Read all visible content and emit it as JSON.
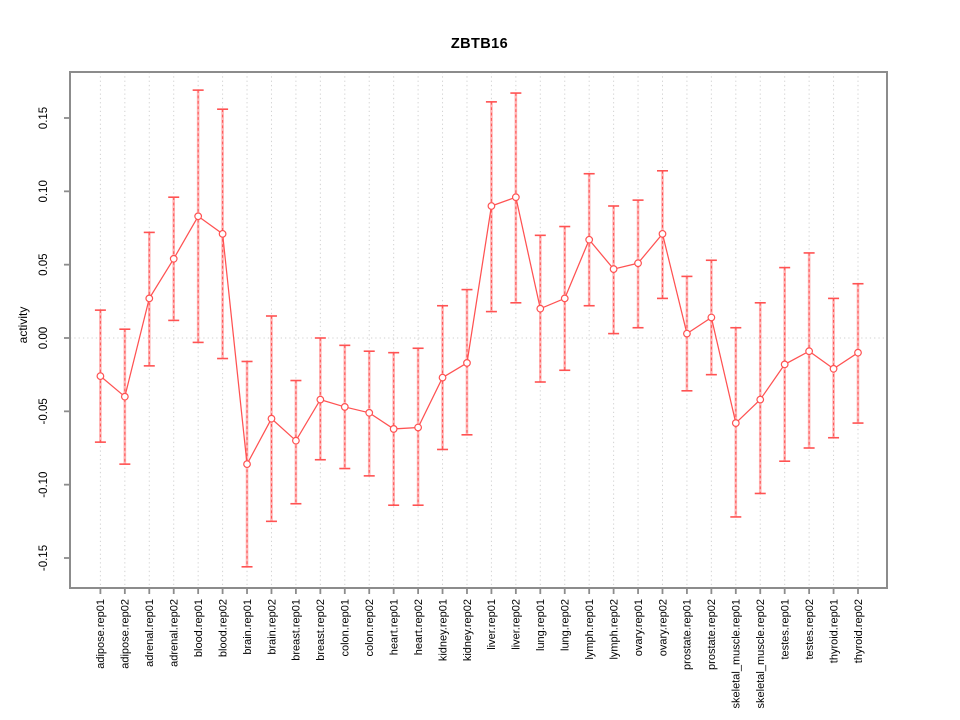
{
  "page": {
    "background": "#ffffff"
  },
  "chart_data": {
    "type": "line",
    "subtype": "points-with-error-bars",
    "title": "ZBTB16",
    "xlabel": "",
    "ylabel": "activity",
    "legend": "none",
    "grid": {
      "vertical": "dotted-per-category",
      "horizontal": "dotted-zero-line-only"
    },
    "ylim": [
      -0.17,
      0.182
    ],
    "ytick_values": [
      0.15,
      0.1,
      0.05,
      0.0,
      -0.05,
      -0.1,
      -0.15
    ],
    "ytick_labels": [
      "0.15",
      "0.10",
      "0.05",
      "0.00",
      "-0.05",
      "-0.10",
      "-0.15"
    ],
    "categories": [
      "adipose.rep01",
      "adipose.rep02",
      "adrenal.rep01",
      "adrenal.rep02",
      "blood.rep01",
      "blood.rep02",
      "brain.rep01",
      "brain.rep02",
      "breast.rep01",
      "breast.rep02",
      "colon.rep01",
      "colon.rep02",
      "heart.rep01",
      "heart.rep02",
      "kidney.rep01",
      "kidney.rep02",
      "liver.rep01",
      "liver.rep02",
      "lung.rep01",
      "lung.rep02",
      "lymph.rep01",
      "lymph.rep02",
      "ovary.rep01",
      "ovary.rep02",
      "prostate.rep01",
      "prostate.rep02",
      "skeletal_muscle.rep01",
      "skeletal_muscle.rep02",
      "testes.rep01",
      "testes.rep02",
      "thyroid.rep01",
      "thyroid.rep02"
    ],
    "series": [
      {
        "name": "ZBTB16 activity",
        "values": [
          -0.026,
          -0.04,
          0.027,
          0.054,
          0.083,
          0.071,
          -0.086,
          -0.055,
          -0.07,
          -0.042,
          -0.047,
          -0.051,
          -0.062,
          -0.061,
          -0.027,
          -0.017,
          0.09,
          0.096,
          0.02,
          0.027,
          0.067,
          0.047,
          0.051,
          0.071,
          0.003,
          0.014,
          -0.058,
          -0.042,
          -0.018,
          -0.009,
          -0.021,
          -0.01
        ],
        "ci_upper": [
          0.019,
          0.006,
          0.072,
          0.096,
          0.169,
          0.156,
          -0.016,
          0.015,
          -0.029,
          0.0,
          -0.005,
          -0.009,
          -0.01,
          -0.007,
          0.022,
          0.033,
          0.161,
          0.167,
          0.07,
          0.076,
          0.112,
          0.09,
          0.094,
          0.114,
          0.042,
          0.053,
          0.007,
          0.024,
          0.048,
          0.058,
          0.027,
          0.037
        ],
        "ci_lower": [
          -0.071,
          -0.086,
          -0.019,
          0.012,
          -0.003,
          -0.014,
          -0.156,
          -0.125,
          -0.113,
          -0.083,
          -0.089,
          -0.094,
          -0.114,
          -0.114,
          -0.076,
          -0.066,
          0.018,
          0.024,
          -0.03,
          -0.022,
          0.022,
          0.003,
          0.007,
          0.027,
          -0.036,
          -0.025,
          -0.122,
          -0.106,
          -0.084,
          -0.075,
          -0.068,
          -0.058
        ]
      }
    ],
    "colors": {
      "series_line": "#ff5252",
      "marker_stroke": "#ff5252",
      "marker_fill": "#ffffff",
      "error_bar_band": "#ffb5b5",
      "error_bar_dash": "#ff5252",
      "grid": "#d2d2d2",
      "frame": "#8c8c8c",
      "text": "#000000"
    }
  }
}
